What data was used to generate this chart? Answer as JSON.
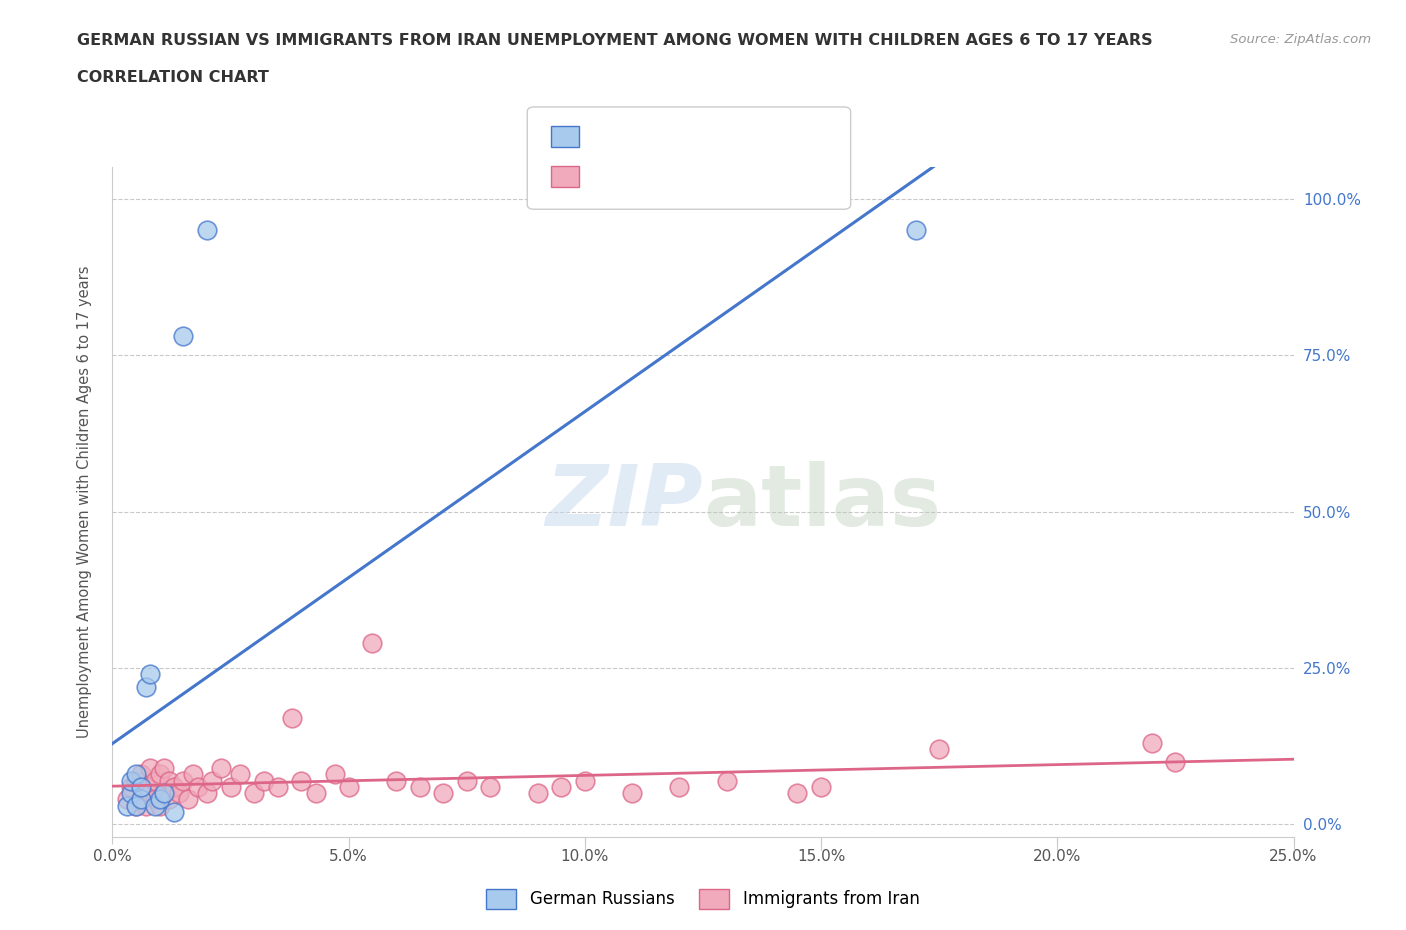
{
  "title": "GERMAN RUSSIAN VS IMMIGRANTS FROM IRAN UNEMPLOYMENT AMONG WOMEN WITH CHILDREN AGES 6 TO 17 YEARS",
  "subtitle": "CORRELATION CHART",
  "source": "Source: ZipAtlas.com",
  "ylabel": "Unemployment Among Women with Children Ages 6 to 17 years",
  "xlim": [
    0,
    0.25
  ],
  "ylim": [
    -0.02,
    1.05
  ],
  "yticks": [
    0.0,
    0.25,
    0.5,
    0.75,
    1.0
  ],
  "ytick_labels": [
    "0.0%",
    "25.0%",
    "50.0%",
    "75.0%",
    "100.0%"
  ],
  "xticks": [
    0.0,
    0.05,
    0.1,
    0.15,
    0.2,
    0.25
  ],
  "xtick_labels": [
    "0.0%",
    "5.0%",
    "10.0%",
    "15.0%",
    "20.0%",
    "25.0%"
  ],
  "watermark_zip": "ZIP",
  "watermark_atlas": "atlas",
  "color_blue": "#A8CAEC",
  "color_pink": "#F0AABB",
  "color_blue_line": "#4477CC",
  "color_pink_line": "#DD6688",
  "background": "#FFFFFF",
  "german_russian_x": [
    0.003,
    0.004,
    0.004,
    0.005,
    0.005,
    0.006,
    0.006,
    0.007,
    0.008,
    0.009,
    0.01,
    0.011,
    0.013,
    0.015,
    0.02,
    0.17
  ],
  "german_russian_y": [
    0.03,
    0.05,
    0.07,
    0.03,
    0.08,
    0.04,
    0.06,
    0.22,
    0.24,
    0.03,
    0.04,
    0.05,
    0.02,
    0.78,
    0.95,
    0.95
  ],
  "iran_x": [
    0.003,
    0.004,
    0.005,
    0.005,
    0.006,
    0.006,
    0.007,
    0.007,
    0.008,
    0.008,
    0.009,
    0.009,
    0.01,
    0.01,
    0.011,
    0.011,
    0.012,
    0.012,
    0.013,
    0.014,
    0.015,
    0.016,
    0.017,
    0.018,
    0.02,
    0.021,
    0.023,
    0.025,
    0.027,
    0.03,
    0.032,
    0.035,
    0.038,
    0.04,
    0.043,
    0.047,
    0.05,
    0.055,
    0.06,
    0.065,
    0.07,
    0.075,
    0.08,
    0.09,
    0.095,
    0.1,
    0.11,
    0.12,
    0.13,
    0.145,
    0.15,
    0.175,
    0.22,
    0.225
  ],
  "iran_y": [
    0.04,
    0.06,
    0.03,
    0.07,
    0.04,
    0.08,
    0.03,
    0.06,
    0.05,
    0.09,
    0.04,
    0.07,
    0.03,
    0.08,
    0.05,
    0.09,
    0.04,
    0.07,
    0.06,
    0.05,
    0.07,
    0.04,
    0.08,
    0.06,
    0.05,
    0.07,
    0.09,
    0.06,
    0.08,
    0.05,
    0.07,
    0.06,
    0.17,
    0.07,
    0.05,
    0.08,
    0.06,
    0.29,
    0.07,
    0.06,
    0.05,
    0.07,
    0.06,
    0.05,
    0.06,
    0.07,
    0.05,
    0.06,
    0.07,
    0.05,
    0.06,
    0.12,
    0.13,
    0.1
  ]
}
